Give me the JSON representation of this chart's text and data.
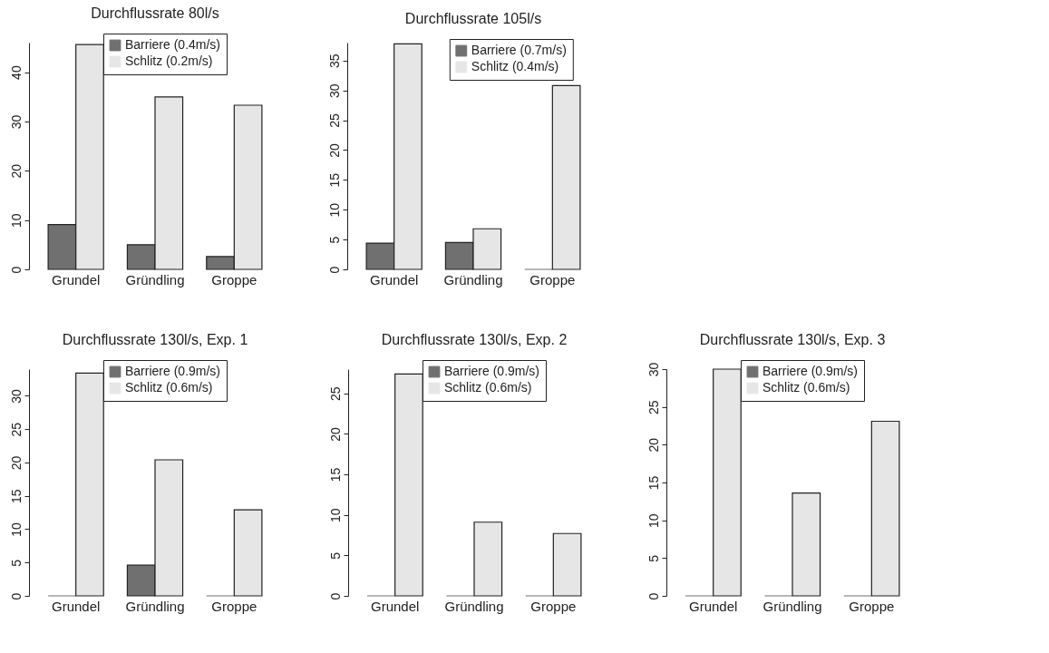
{
  "chart_data": [
    {
      "type": "bar",
      "title": "Durchflussrate 80l/s",
      "categories": [
        "Grundel",
        "Gründling",
        "Groppe"
      ],
      "series": [
        {
          "name": "Barriere (0.4m/s)",
          "color": "#707070",
          "values": [
            9.1,
            5.0,
            2.6
          ]
        },
        {
          "name": "Schlitz (0.2m/s)",
          "color": "#e6e6e6",
          "values": [
            45.6,
            35.0,
            33.3
          ]
        }
      ],
      "ylim": [
        0,
        46
      ],
      "yticks": [
        0,
        10,
        20,
        30,
        40
      ],
      "legend": "top right",
      "grid": false
    },
    {
      "type": "bar",
      "title": "Durchflussrate 105l/s",
      "categories": [
        "Grundel",
        "Gründling",
        "Groppe"
      ],
      "series": [
        {
          "name": "Barriere (0.7m/s)",
          "color": "#707070",
          "values": [
            4.4,
            4.5,
            0
          ]
        },
        {
          "name": "Schlitz (0.4m/s)",
          "color": "#e6e6e6",
          "values": [
            37.8,
            6.8,
            30.8
          ]
        }
      ],
      "ylim": [
        0,
        38
      ],
      "yticks": [
        0,
        5,
        10,
        15,
        20,
        25,
        30,
        35
      ],
      "legend": "top",
      "grid": false
    },
    {
      "type": "bar",
      "title": "Durchflussrate 130l/s, Exp. 1",
      "categories": [
        "Grundel",
        "Gründling",
        "Groppe"
      ],
      "series": [
        {
          "name": "Barriere (0.9m/s)",
          "color": "#707070",
          "values": [
            0,
            4.6,
            0
          ]
        },
        {
          "name": "Schlitz (0.6m/s)",
          "color": "#e6e6e6",
          "values": [
            33.4,
            20.4,
            12.9
          ]
        }
      ],
      "ylim": [
        0,
        34
      ],
      "yticks": [
        0,
        5,
        10,
        15,
        20,
        25,
        30
      ],
      "legend": "top right",
      "grid": false
    },
    {
      "type": "bar",
      "title": "Durchflussrate 130l/s, Exp. 2",
      "categories": [
        "Grundel",
        "Gründling",
        "Groppe"
      ],
      "series": [
        {
          "name": "Barriere (0.9m/s)",
          "color": "#707070",
          "values": [
            0,
            0,
            0
          ]
        },
        {
          "name": "Schlitz (0.6m/s)",
          "color": "#e6e6e6",
          "values": [
            27.4,
            9.1,
            7.7
          ]
        }
      ],
      "ylim": [
        0,
        28
      ],
      "yticks": [
        0,
        5,
        10,
        15,
        20,
        25
      ],
      "legend": "top right",
      "grid": false
    },
    {
      "type": "bar",
      "title": "Durchflussrate 130l/s, Exp. 3",
      "categories": [
        "Grundel",
        "Gründling",
        "Groppe"
      ],
      "series": [
        {
          "name": "Barriere (0.9m/s)",
          "color": "#707070",
          "values": [
            0,
            0,
            0
          ]
        },
        {
          "name": "Schlitz (0.6m/s)",
          "color": "#e6e6e6",
          "values": [
            30.0,
            13.6,
            23.1
          ]
        }
      ],
      "ylim": [
        0,
        30
      ],
      "yticks": [
        0,
        5,
        10,
        15,
        20,
        25,
        30
      ],
      "legend": "top right",
      "grid": false
    }
  ]
}
